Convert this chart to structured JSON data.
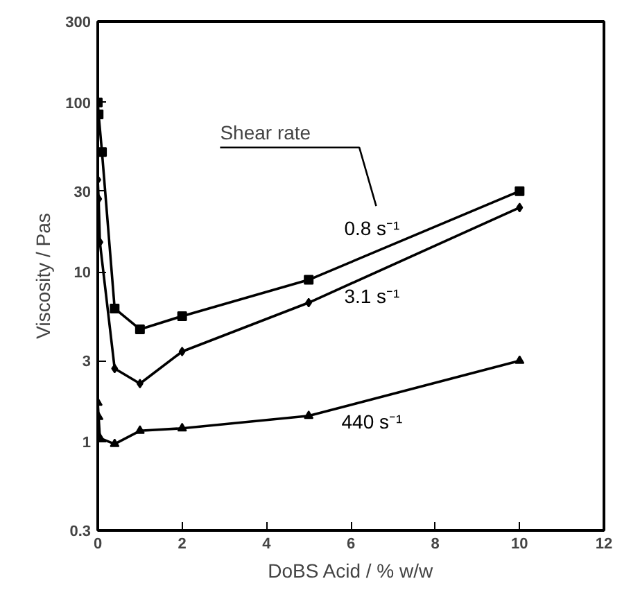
{
  "chart_data": {
    "type": "line",
    "xlabel": "DoBS Acid / % w/w",
    "ylabel": "Viscosity / Pas",
    "annotations": [
      "Shear rate"
    ],
    "series": [
      {
        "name": "0.8 s⁻¹",
        "color": "#000000",
        "marker": "square",
        "x": [
          0,
          0.02,
          0.1,
          0.4,
          1,
          2,
          5,
          10
        ],
        "values": [
          100,
          85,
          51,
          6.1,
          4.6,
          5.5,
          9.0,
          30
        ]
      },
      {
        "name": "3.1 s⁻¹",
        "color": "#000000",
        "marker": "diamond",
        "x": [
          0,
          0.02,
          0.05,
          0.4,
          1,
          2,
          5,
          10
        ],
        "values": [
          35,
          27,
          15,
          2.7,
          2.2,
          3.4,
          6.6,
          24
        ]
      },
      {
        "name": "440 s⁻¹",
        "color": "#000000",
        "marker": "triangle",
        "x": [
          0,
          0.02,
          0.05,
          0.4,
          1,
          2,
          5,
          10
        ],
        "values": [
          1.7,
          1.4,
          1.05,
          0.97,
          1.16,
          1.2,
          1.42,
          3.0
        ]
      }
    ],
    "xlim": [
      0,
      12
    ],
    "xticks": [
      0,
      2,
      4,
      6,
      8,
      10,
      12
    ],
    "ylim": [
      0.3,
      300
    ],
    "yticks": [
      0.3,
      1,
      3,
      10,
      30,
      100,
      300
    ],
    "log": "y",
    "grid": false,
    "line_style": "solid"
  }
}
